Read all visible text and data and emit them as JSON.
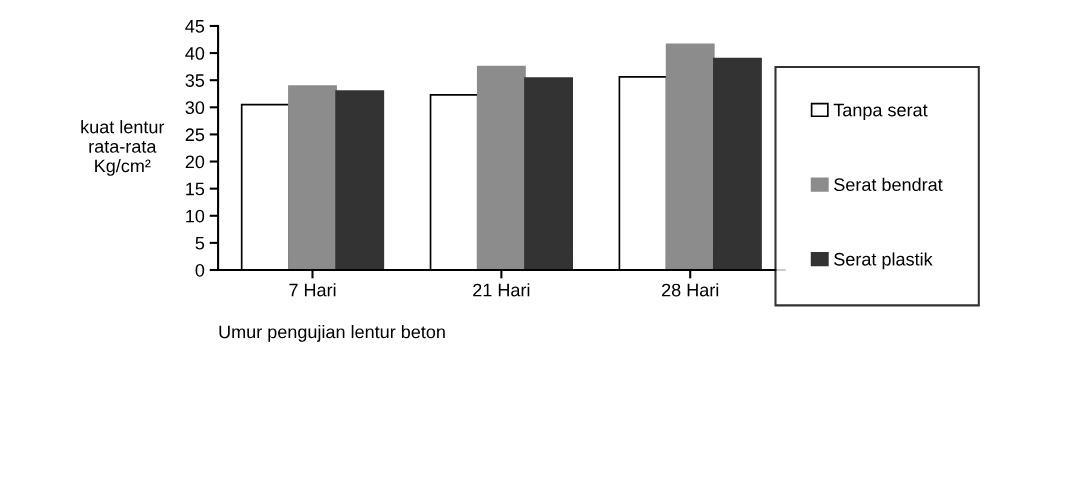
{
  "chart_data": {
    "type": "bar",
    "xlabel": "Umur pengujian lentur beton",
    "ylabel": "kuat lentur\nrata-rata\nKg/cm²",
    "categories": [
      "7 Hari",
      "21 Hari",
      "28 Hari"
    ],
    "series": [
      {
        "name": "Tanpa serat",
        "color": "#ffffff",
        "values": [
          30.5,
          32.3,
          35.6
        ]
      },
      {
        "name": "Serat bendrat",
        "color": "#8c8c8c",
        "values": [
          33.9,
          37.5,
          41.6
        ]
      },
      {
        "name": "Serat plastik",
        "color": "#333333",
        "values": [
          33.0,
          35.4,
          39.0
        ]
      }
    ],
    "ylim": [
      0,
      45
    ],
    "yticks": [
      0,
      5,
      10,
      15,
      20,
      25,
      30,
      35,
      40,
      45
    ],
    "grid": false,
    "legend": "right"
  }
}
